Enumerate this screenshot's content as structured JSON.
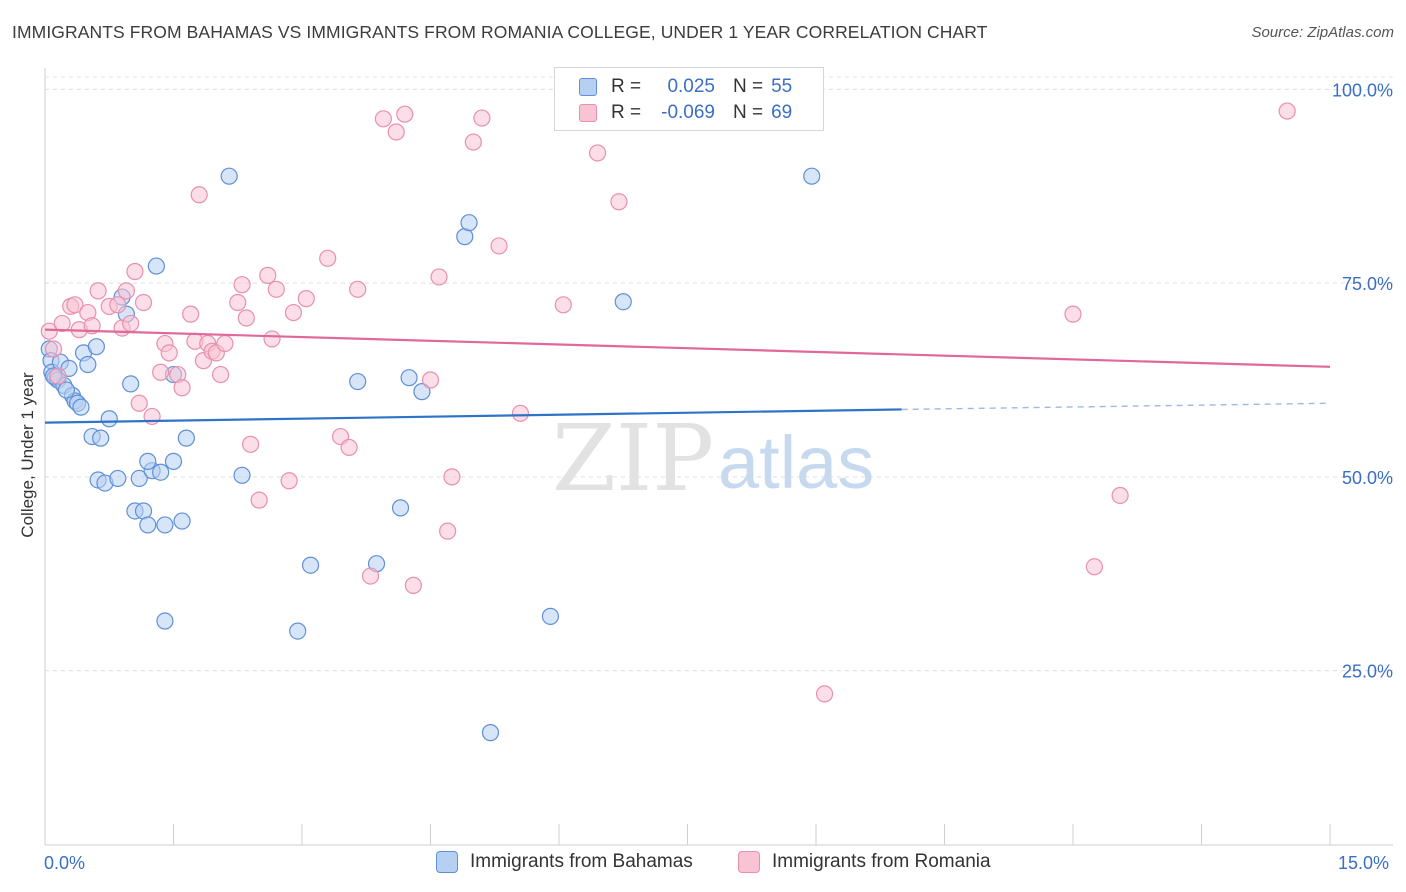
{
  "title": "IMMIGRANTS FROM BAHAMAS VS IMMIGRANTS FROM ROMANIA COLLEGE, UNDER 1 YEAR CORRELATION CHART",
  "source": "Source: ZipAtlas.com",
  "watermark": {
    "zip": "ZIP",
    "atlas": "atlas"
  },
  "legend": {
    "r_label": "R =",
    "n_label": "N =",
    "series": [
      {
        "name": "Immigrants from Bahamas",
        "r": "0.025",
        "n": "55",
        "fill": "#b6d0f2",
        "stroke": "#5f90d8",
        "line": "#2f73c9"
      },
      {
        "name": "Immigrants from Romania",
        "r": "-0.069",
        "n": "69",
        "fill": "#f8c3d3",
        "stroke": "#e890ad",
        "line": "#e0689a"
      }
    ]
  },
  "chart_data": {
    "type": "scatter",
    "title": "IMMIGRANTS FROM BAHAMAS VS IMMIGRANTS FROM ROMANIA COLLEGE, UNDER 1 YEAR CORRELATION CHART",
    "xlabel": "",
    "ylabel": "College, Under 1 year",
    "xlim": [
      0,
      15
    ],
    "ylim": [
      2.5,
      102.5
    ],
    "x_tick_labels": [
      "0.0%",
      "15.0%"
    ],
    "y_ticks": [
      25,
      50,
      75,
      100
    ],
    "y_tick_labels": [
      "25.0%",
      "50.0%",
      "75.0%",
      "100.0%"
    ],
    "grid": true,
    "series": [
      {
        "name": "Immigrants from Bahamas",
        "trend": {
          "x0": 0,
          "y0": 57.0,
          "x1": 10.0,
          "y1": 58.7,
          "dashed_to_x": 15,
          "dashed_to_y": 59.5
        },
        "points": [
          [
            0.05,
            66.5
          ],
          [
            0.07,
            65.0
          ],
          [
            0.08,
            63.5
          ],
          [
            0.12,
            62.8
          ],
          [
            0.15,
            62.5
          ],
          [
            0.18,
            64.8
          ],
          [
            0.22,
            61.8
          ],
          [
            0.28,
            64.0
          ],
          [
            0.32,
            60.5
          ],
          [
            0.35,
            59.8
          ],
          [
            0.38,
            59.5
          ],
          [
            0.45,
            66.0
          ],
          [
            0.5,
            64.5
          ],
          [
            0.42,
            59.0
          ],
          [
            0.6,
            66.8
          ],
          [
            0.75,
            57.5
          ],
          [
            0.9,
            73.2
          ],
          [
            0.95,
            71.0
          ],
          [
            0.55,
            55.2
          ],
          [
            0.65,
            55.0
          ],
          [
            0.62,
            49.6
          ],
          [
            0.7,
            49.2
          ],
          [
            0.85,
            49.8
          ],
          [
            1.1,
            49.8
          ],
          [
            1.25,
            50.8
          ],
          [
            1.35,
            50.6
          ],
          [
            1.2,
            52.0
          ],
          [
            1.5,
            52.0
          ],
          [
            1.05,
            45.6
          ],
          [
            1.15,
            45.6
          ],
          [
            1.2,
            43.8
          ],
          [
            1.4,
            43.8
          ],
          [
            1.6,
            44.3
          ],
          [
            1.65,
            55.0
          ],
          [
            1.0,
            62.0
          ],
          [
            1.5,
            63.2
          ],
          [
            1.3,
            77.2
          ],
          [
            2.15,
            88.8
          ],
          [
            2.3,
            50.2
          ],
          [
            1.4,
            31.4
          ],
          [
            3.1,
            38.6
          ],
          [
            2.95,
            30.1
          ],
          [
            3.65,
            62.3
          ],
          [
            3.87,
            38.8
          ],
          [
            4.25,
            62.8
          ],
          [
            4.4,
            61.0
          ],
          [
            4.15,
            46.0
          ],
          [
            4.9,
            81.0
          ],
          [
            4.95,
            82.8
          ],
          [
            5.2,
            17.0
          ],
          [
            5.9,
            32.0
          ],
          [
            6.75,
            72.6
          ],
          [
            8.95,
            88.8
          ],
          [
            0.25,
            61.2
          ],
          [
            0.1,
            63.0
          ]
        ]
      },
      {
        "name": "Immigrants from Romania",
        "trend": {
          "x0": 0,
          "y0": 69.0,
          "x1": 15,
          "y1": 64.2
        },
        "points": [
          [
            0.05,
            68.8
          ],
          [
            0.1,
            66.5
          ],
          [
            0.15,
            63.0
          ],
          [
            0.2,
            69.8
          ],
          [
            0.3,
            72.0
          ],
          [
            0.35,
            72.2
          ],
          [
            0.4,
            69.0
          ],
          [
            0.5,
            71.2
          ],
          [
            0.55,
            69.5
          ],
          [
            0.62,
            74.0
          ],
          [
            0.75,
            72.0
          ],
          [
            0.85,
            72.2
          ],
          [
            0.9,
            69.2
          ],
          [
            0.95,
            74.0
          ],
          [
            1.0,
            69.8
          ],
          [
            1.05,
            76.5
          ],
          [
            1.1,
            59.5
          ],
          [
            1.15,
            72.5
          ],
          [
            1.25,
            57.8
          ],
          [
            1.35,
            63.5
          ],
          [
            1.4,
            67.2
          ],
          [
            1.45,
            66.0
          ],
          [
            1.55,
            63.2
          ],
          [
            1.6,
            61.5
          ],
          [
            1.7,
            71.0
          ],
          [
            1.75,
            67.5
          ],
          [
            1.8,
            86.4
          ],
          [
            1.85,
            65.0
          ],
          [
            1.9,
            67.2
          ],
          [
            1.95,
            66.2
          ],
          [
            2.0,
            66.0
          ],
          [
            2.05,
            63.2
          ],
          [
            2.1,
            67.2
          ],
          [
            2.25,
            72.5
          ],
          [
            2.3,
            74.8
          ],
          [
            2.35,
            70.5
          ],
          [
            2.4,
            54.2
          ],
          [
            2.5,
            47.0
          ],
          [
            2.6,
            76.0
          ],
          [
            2.65,
            67.8
          ],
          [
            2.7,
            74.2
          ],
          [
            2.85,
            49.5
          ],
          [
            2.9,
            71.2
          ],
          [
            3.05,
            73.0
          ],
          [
            3.3,
            78.2
          ],
          [
            3.45,
            55.2
          ],
          [
            3.55,
            53.8
          ],
          [
            3.65,
            74.2
          ],
          [
            3.8,
            37.2
          ],
          [
            3.95,
            96.2
          ],
          [
            4.1,
            94.5
          ],
          [
            4.2,
            96.8
          ],
          [
            4.3,
            36.0
          ],
          [
            4.5,
            62.5
          ],
          [
            4.6,
            75.8
          ],
          [
            4.7,
            43.0
          ],
          [
            4.75,
            50.0
          ],
          [
            5.0,
            93.2
          ],
          [
            5.1,
            96.3
          ],
          [
            5.3,
            79.8
          ],
          [
            5.55,
            58.2
          ],
          [
            6.05,
            72.2
          ],
          [
            6.45,
            91.8
          ],
          [
            6.7,
            85.5
          ],
          [
            9.1,
            22.0
          ],
          [
            12.0,
            71.0
          ],
          [
            12.25,
            38.4
          ],
          [
            12.55,
            47.6
          ],
          [
            14.5,
            97.2
          ]
        ]
      }
    ]
  },
  "axes": {
    "x_left": "0.0%",
    "x_right": "15.0%",
    "y_label": "College, Under 1 year"
  }
}
